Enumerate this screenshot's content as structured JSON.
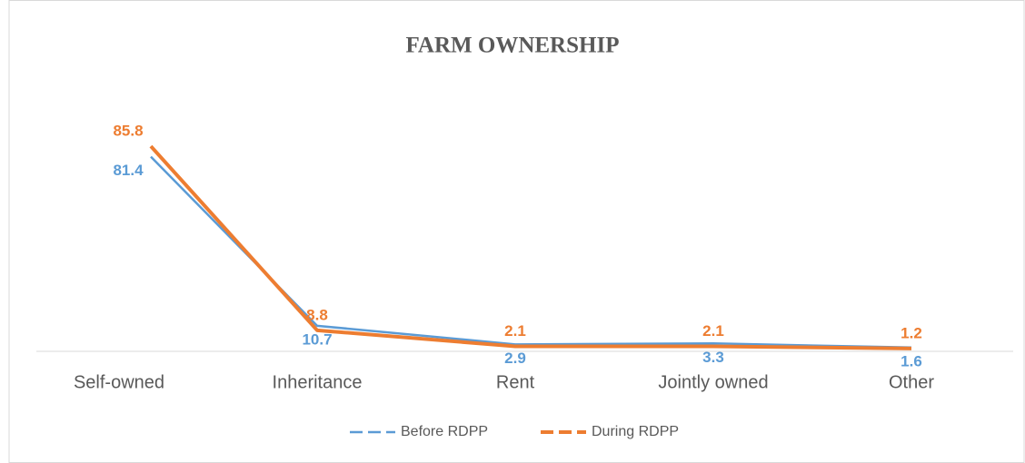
{
  "chart_data": {
    "type": "line",
    "title": "FARM OWNERSHIP",
    "categories": [
      "Self-owned",
      "Inheritance",
      "Rent",
      "Jointly owned",
      "Other"
    ],
    "series": [
      {
        "name": "Before RDPP",
        "color": "#5b9bd5",
        "values": [
          81.4,
          10.7,
          2.9,
          3.3,
          1.6
        ]
      },
      {
        "name": "During RDPP",
        "color": "#ed7d31",
        "values": [
          85.8,
          8.8,
          2.1,
          2.1,
          1.2
        ]
      }
    ],
    "ylim": [
      0,
      90
    ],
    "legend": "bottom"
  }
}
